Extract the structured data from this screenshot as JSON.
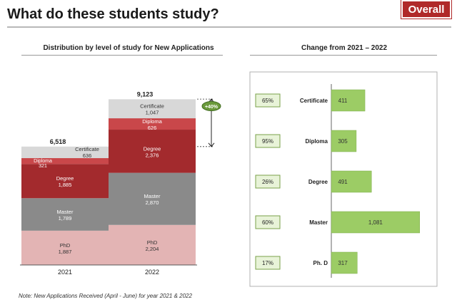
{
  "header": {
    "title": "What do these students study?",
    "badge": "Overall"
  },
  "left_chart": {
    "title": "Distribution by level of study for New Applications",
    "change_label": "+40%"
  },
  "right_chart": {
    "title": "Change from  2021 – 2022"
  },
  "footnote": "Note: New Applications Received (April - June) for year 2021 & 2022",
  "colors": {
    "Certificate": "#d8d8d8",
    "Diploma": "#c9474a",
    "Degree": "#a32a2d",
    "Master": "#8a8a8a",
    "PhD": "#e3b4b4",
    "bar_green": "#9ccc65",
    "pct_box_bg": "#e8f3d8",
    "pct_box_border": "#7aa24a"
  },
  "chart_data": [
    {
      "type": "bar",
      "stacked": true,
      "title": "Distribution by level of study for New Applications",
      "categories": [
        "2021",
        "2022"
      ],
      "totals": [
        "6,518",
        "9,123"
      ],
      "series": [
        {
          "name": "PhD",
          "label": "PhD",
          "values": [
            1887,
            2204
          ],
          "value_labels": [
            "1,887",
            "2,204"
          ]
        },
        {
          "name": "Master",
          "label": "Master",
          "values": [
            1789,
            2870
          ],
          "value_labels": [
            "1,789",
            "2,870"
          ]
        },
        {
          "name": "Degree",
          "label": "Degree",
          "values": [
            1885,
            2376
          ],
          "value_labels": [
            "1,885",
            "2,376"
          ]
        },
        {
          "name": "Diploma",
          "label": "Diploma",
          "values": [
            321,
            626
          ],
          "value_labels": [
            "321",
            "626"
          ]
        },
        {
          "name": "Certificate",
          "label": "Certificate",
          "values": [
            636,
            1047
          ],
          "value_labels": [
            "636",
            "1,047"
          ]
        }
      ],
      "annotation": "+40%"
    },
    {
      "type": "bar",
      "orientation": "horizontal",
      "title": "Change from  2021 – 2022",
      "categories": [
        "Certificate",
        "Diploma",
        "Degree",
        "Master",
        "Ph. D"
      ],
      "values": [
        411,
        305,
        491,
        1081,
        317
      ],
      "value_labels": [
        "411",
        "305",
        "491",
        "1,081",
        "317"
      ],
      "percent_labels": [
        "65%",
        "95%",
        "26%",
        "60%",
        "17%"
      ]
    }
  ]
}
